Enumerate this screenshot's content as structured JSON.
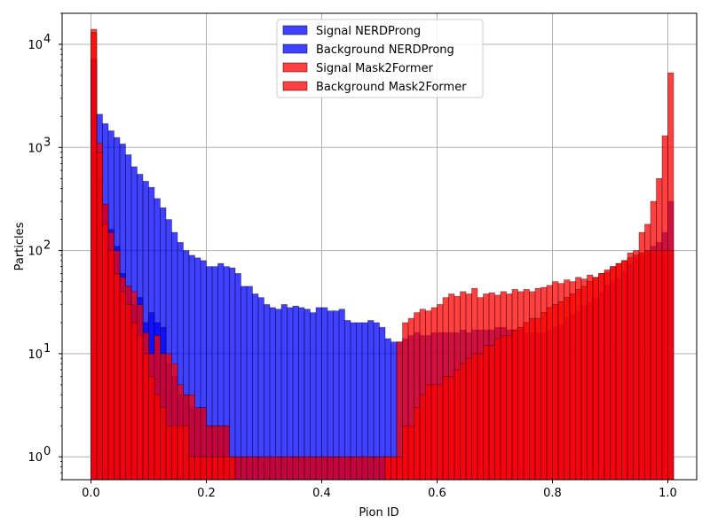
{
  "chart_data": {
    "type": "histogram",
    "xlabel": "Pion ID",
    "ylabel": "Particles",
    "yscale": "log",
    "xlim": [
      -0.05,
      1.05
    ],
    "ylim": [
      0.6,
      20000
    ],
    "grid": true,
    "legend_position": "top-center",
    "bin_width": 0.01,
    "x_ticks": [
      {
        "value": 0.0,
        "label": "0.0"
      },
      {
        "value": 0.2,
        "label": "0.2"
      },
      {
        "value": 0.4,
        "label": "0.4"
      },
      {
        "value": 0.6,
        "label": "0.6"
      },
      {
        "value": 0.8,
        "label": "0.8"
      },
      {
        "value": 1.0,
        "label": "1.0"
      }
    ],
    "y_ticks": [
      {
        "value": 1,
        "base": "10",
        "exp": "0"
      },
      {
        "value": 10,
        "base": "10",
        "exp": "1"
      },
      {
        "value": 100,
        "base": "10",
        "exp": "2"
      },
      {
        "value": 1000,
        "base": "10",
        "exp": "3"
      },
      {
        "value": 10000,
        "base": "10",
        "exp": "4"
      }
    ],
    "series": [
      {
        "name": "Signal NERDProng",
        "color": "#0000ff",
        "values": [
          7200,
          2100,
          1700,
          1450,
          1250,
          1080,
          850,
          650,
          550,
          470,
          410,
          320,
          260,
          200,
          150,
          120,
          100,
          90,
          85,
          80,
          70,
          70,
          75,
          70,
          68,
          60,
          45,
          45,
          38,
          35,
          30,
          28,
          27,
          30,
          28,
          29,
          28,
          27,
          25,
          28,
          28,
          26,
          26,
          27,
          21,
          20,
          20,
          20,
          21,
          20,
          18,
          14,
          13,
          13,
          14,
          15,
          16,
          15,
          15,
          16,
          16,
          16,
          16,
          16,
          17,
          16,
          17,
          17,
          17,
          17,
          18,
          18,
          17,
          17,
          17,
          16,
          16,
          16,
          16,
          17,
          18,
          19,
          22,
          24,
          26,
          29,
          31,
          34,
          39,
          46,
          51,
          54,
          62,
          74,
          85,
          90,
          100,
          110,
          120,
          150,
          300
        ]
      },
      {
        "name": "Background NERDProng",
        "color": "#0000ff",
        "values": [
          7200,
          500,
          280,
          160,
          110,
          60,
          45,
          30,
          35,
          20,
          25,
          20,
          18,
          8,
          6,
          4,
          4,
          3,
          3,
          3,
          2,
          2,
          2,
          2,
          1,
          1,
          1,
          1,
          1,
          1,
          1,
          1,
          1,
          1,
          1,
          1,
          1,
          1,
          1,
          1,
          1,
          1,
          1,
          1,
          1,
          1,
          1,
          1,
          1,
          1,
          1,
          0.5,
          0.5,
          0.5,
          0.5,
          0.5,
          0.5,
          0.5,
          0.5,
          0.5,
          0.5,
          0.5,
          0.5,
          0.5,
          0.5,
          0.5,
          0.5,
          0.5,
          0.5,
          0.5,
          0.5,
          0.5,
          0.5,
          0.5,
          0.5,
          0.5,
          0.5,
          0.5,
          0.5,
          0.5,
          0.5,
          0.5,
          0.5,
          0.5,
          0.5,
          0.5,
          0.5,
          0.5,
          0.5,
          0.5,
          0.5,
          0.5,
          0.5,
          0.5,
          0.5,
          0.5,
          0.5,
          0.5,
          0.5,
          0.5,
          0.5
        ]
      },
      {
        "name": "Signal Mask2Former",
        "color": "#ff0000",
        "values": [
          14000,
          1100,
          280,
          150,
          100,
          55,
          45,
          40,
          30,
          16,
          10,
          15,
          10,
          10,
          8,
          5,
          4,
          4,
          3,
          3,
          2,
          2,
          2,
          2,
          1,
          1,
          1,
          1,
          1,
          1,
          1,
          1,
          1,
          1,
          1,
          1,
          1,
          1,
          1,
          1,
          1,
          1,
          1,
          1,
          1,
          1,
          1,
          1,
          1,
          1,
          1,
          1,
          1,
          13,
          20,
          22,
          25,
          27,
          26,
          28,
          30,
          35,
          38,
          36,
          40,
          38,
          43,
          35,
          38,
          39,
          37,
          40,
          38,
          42,
          40,
          42,
          40,
          43,
          44,
          46,
          50,
          48,
          52,
          50,
          55,
          53,
          58,
          55,
          60,
          62,
          70,
          75,
          80,
          95,
          100,
          150,
          180,
          300,
          500,
          1300,
          5300
        ]
      },
      {
        "name": "Background Mask2Former",
        "color": "#ff0000",
        "values": [
          13000,
          900,
          180,
          100,
          60,
          40,
          30,
          20,
          15,
          10,
          6,
          4,
          3,
          2,
          2,
          2,
          2,
          1,
          1,
          1,
          1,
          1,
          1,
          1,
          1,
          0.5,
          0.5,
          0.5,
          0.5,
          0.5,
          0.5,
          0.5,
          0.5,
          0.5,
          0.5,
          0.5,
          0.5,
          0.5,
          0.5,
          0.5,
          0.5,
          0.5,
          0.5,
          0.5,
          0.5,
          0.5,
          0.5,
          0.5,
          0.5,
          0.5,
          0.5,
          1,
          1,
          1,
          2,
          2,
          3,
          4,
          5,
          5,
          5,
          6,
          6,
          7,
          8,
          9,
          10,
          10,
          12,
          12,
          14,
          15,
          15,
          17,
          18,
          20,
          22,
          22,
          25,
          28,
          30,
          32,
          35,
          38,
          42,
          45,
          50,
          55,
          60,
          65,
          70,
          75,
          80,
          85,
          90,
          95,
          100,
          100,
          100,
          100,
          100
        ]
      }
    ]
  }
}
